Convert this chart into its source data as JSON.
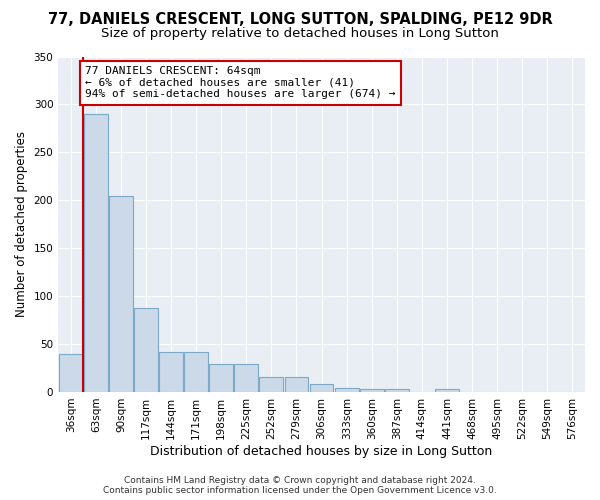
{
  "title": "77, DANIELS CRESCENT, LONG SUTTON, SPALDING, PE12 9DR",
  "subtitle": "Size of property relative to detached houses in Long Sutton",
  "xlabel": "Distribution of detached houses by size in Long Sutton",
  "ylabel": "Number of detached properties",
  "bin_labels": [
    "36sqm",
    "63sqm",
    "90sqm",
    "117sqm",
    "144sqm",
    "171sqm",
    "198sqm",
    "225sqm",
    "252sqm",
    "279sqm",
    "306sqm",
    "333sqm",
    "360sqm",
    "387sqm",
    "414sqm",
    "441sqm",
    "468sqm",
    "495sqm",
    "522sqm",
    "549sqm",
    "576sqm"
  ],
  "bar_heights": [
    40,
    290,
    204,
    88,
    42,
    42,
    29,
    29,
    16,
    16,
    8,
    4,
    3,
    3,
    0,
    3,
    0,
    0,
    0,
    0,
    0
  ],
  "bar_color": "#ccd9e8",
  "bar_edge_color": "#7aaac8",
  "annotation_text": "77 DANIELS CRESCENT: 64sqm\n← 6% of detached houses are smaller (41)\n94% of semi-detached houses are larger (674) →",
  "annotation_box_color": "#ffffff",
  "annotation_edge_color": "#cc0000",
  "red_line_x": 0.5,
  "ylim": [
    0,
    350
  ],
  "yticks": [
    0,
    50,
    100,
    150,
    200,
    250,
    300,
    350
  ],
  "background_color": "#ffffff",
  "plot_background_color": "#e8eef4",
  "grid_color": "#ffffff",
  "title_fontsize": 10.5,
  "subtitle_fontsize": 9.5,
  "xlabel_fontsize": 9,
  "ylabel_fontsize": 8.5,
  "tick_fontsize": 7.5,
  "annotation_fontsize": 8,
  "footer_text": "Contains HM Land Registry data © Crown copyright and database right 2024.\nContains public sector information licensed under the Open Government Licence v3.0.",
  "footer_fontsize": 6.5
}
